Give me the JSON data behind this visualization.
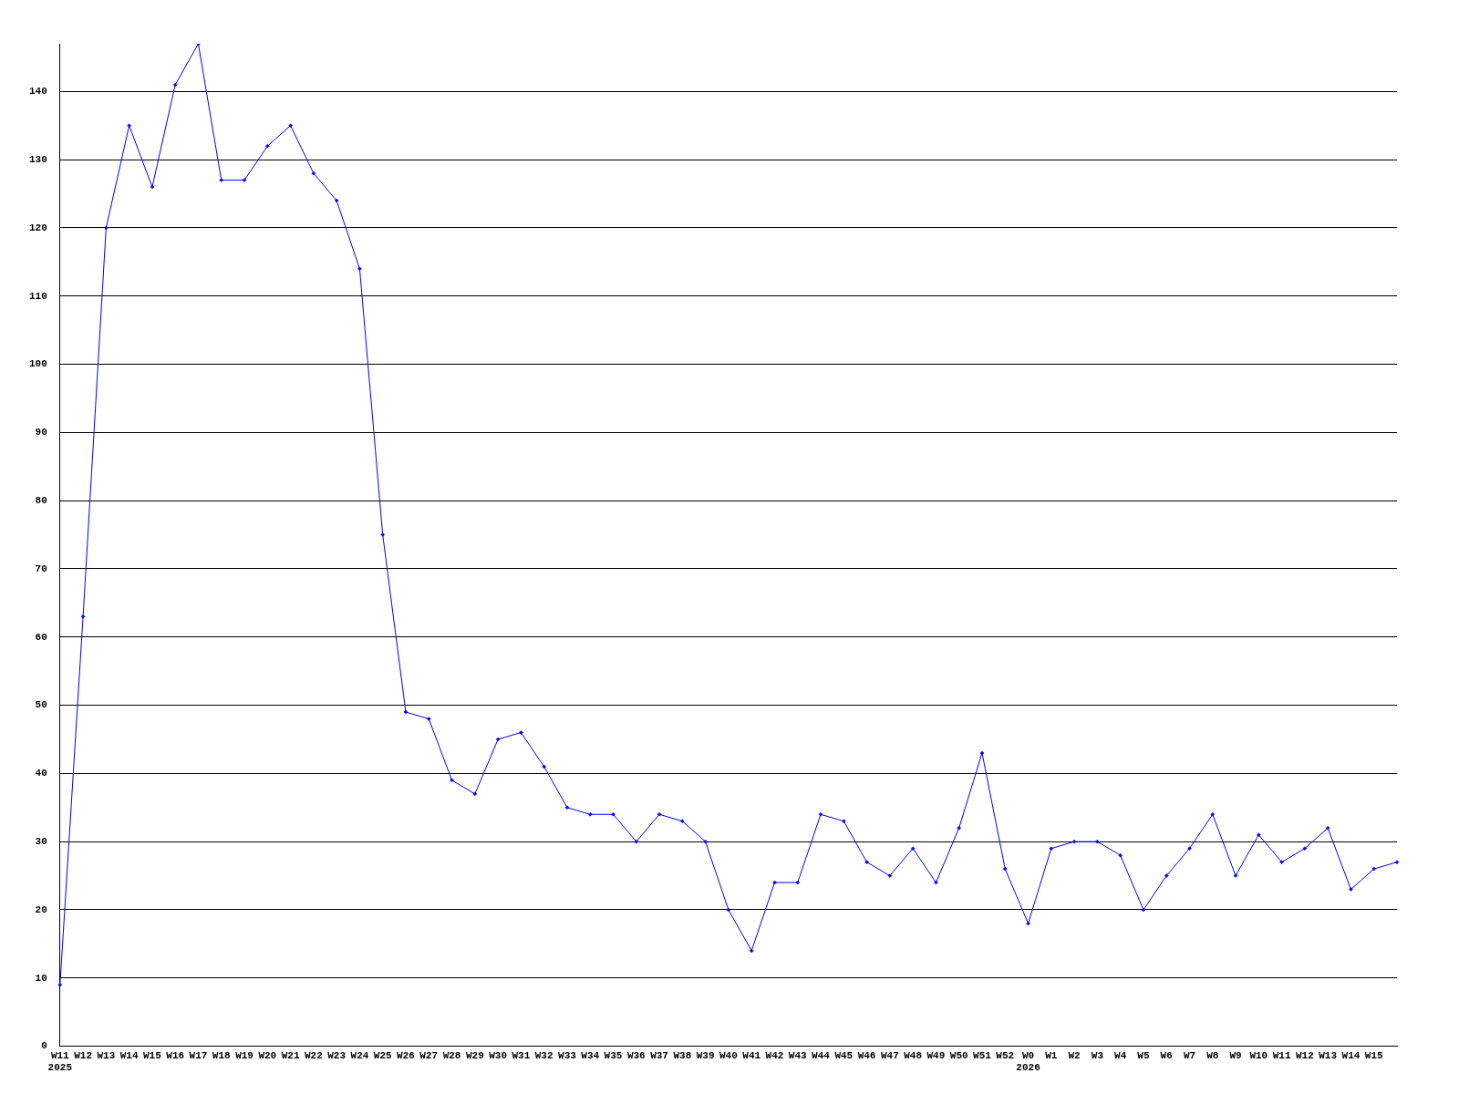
{
  "chart_data": {
    "type": "line",
    "categories": [
      "W11\n2025",
      "W12",
      "W13",
      "W14",
      "W15",
      "W16",
      "W17",
      "W18",
      "W19",
      "W20",
      "W21",
      "W22",
      "W23",
      "W24",
      "W25",
      "W26",
      "W27",
      "W28",
      "W29",
      "W30",
      "W31",
      "W32",
      "W33",
      "W34",
      "W35",
      "W36",
      "W37",
      "W38",
      "W39",
      "W40",
      "W41",
      "W42",
      "W43",
      "W44",
      "W45",
      "W46",
      "W47",
      "W48",
      "W49",
      "W50",
      "W51",
      "W52",
      "W0\n2026",
      "W1",
      "W2",
      "W3",
      "W4",
      "W5",
      "W6",
      "W7",
      "W8",
      "W9",
      "W10",
      "W11",
      "W12",
      "W13",
      "W14",
      "W15",
      null
    ],
    "series": [
      {
        "color": "#0000ff",
        "values": [
          9,
          63,
          120,
          135,
          126,
          141,
          147,
          127,
          127,
          132,
          135,
          128,
          124,
          114,
          75,
          49,
          48,
          39,
          37,
          45,
          46,
          41,
          35,
          34,
          34,
          30,
          34,
          33,
          30,
          20,
          14,
          24,
          24,
          34,
          33,
          27,
          25,
          29,
          24,
          32,
          43,
          26,
          18,
          29,
          30,
          30,
          28,
          20,
          25,
          29,
          34,
          25,
          31,
          27,
          29,
          32,
          23,
          26,
          27
        ]
      }
    ],
    "ylim": [
      0,
      147
    ],
    "yticks": [
      0,
      10,
      20,
      30,
      40,
      50,
      60,
      70,
      80,
      90,
      100,
      110,
      120,
      130,
      140
    ],
    "grid": "y",
    "legend": false,
    "marker": "diamond",
    "line_style": "solid"
  }
}
